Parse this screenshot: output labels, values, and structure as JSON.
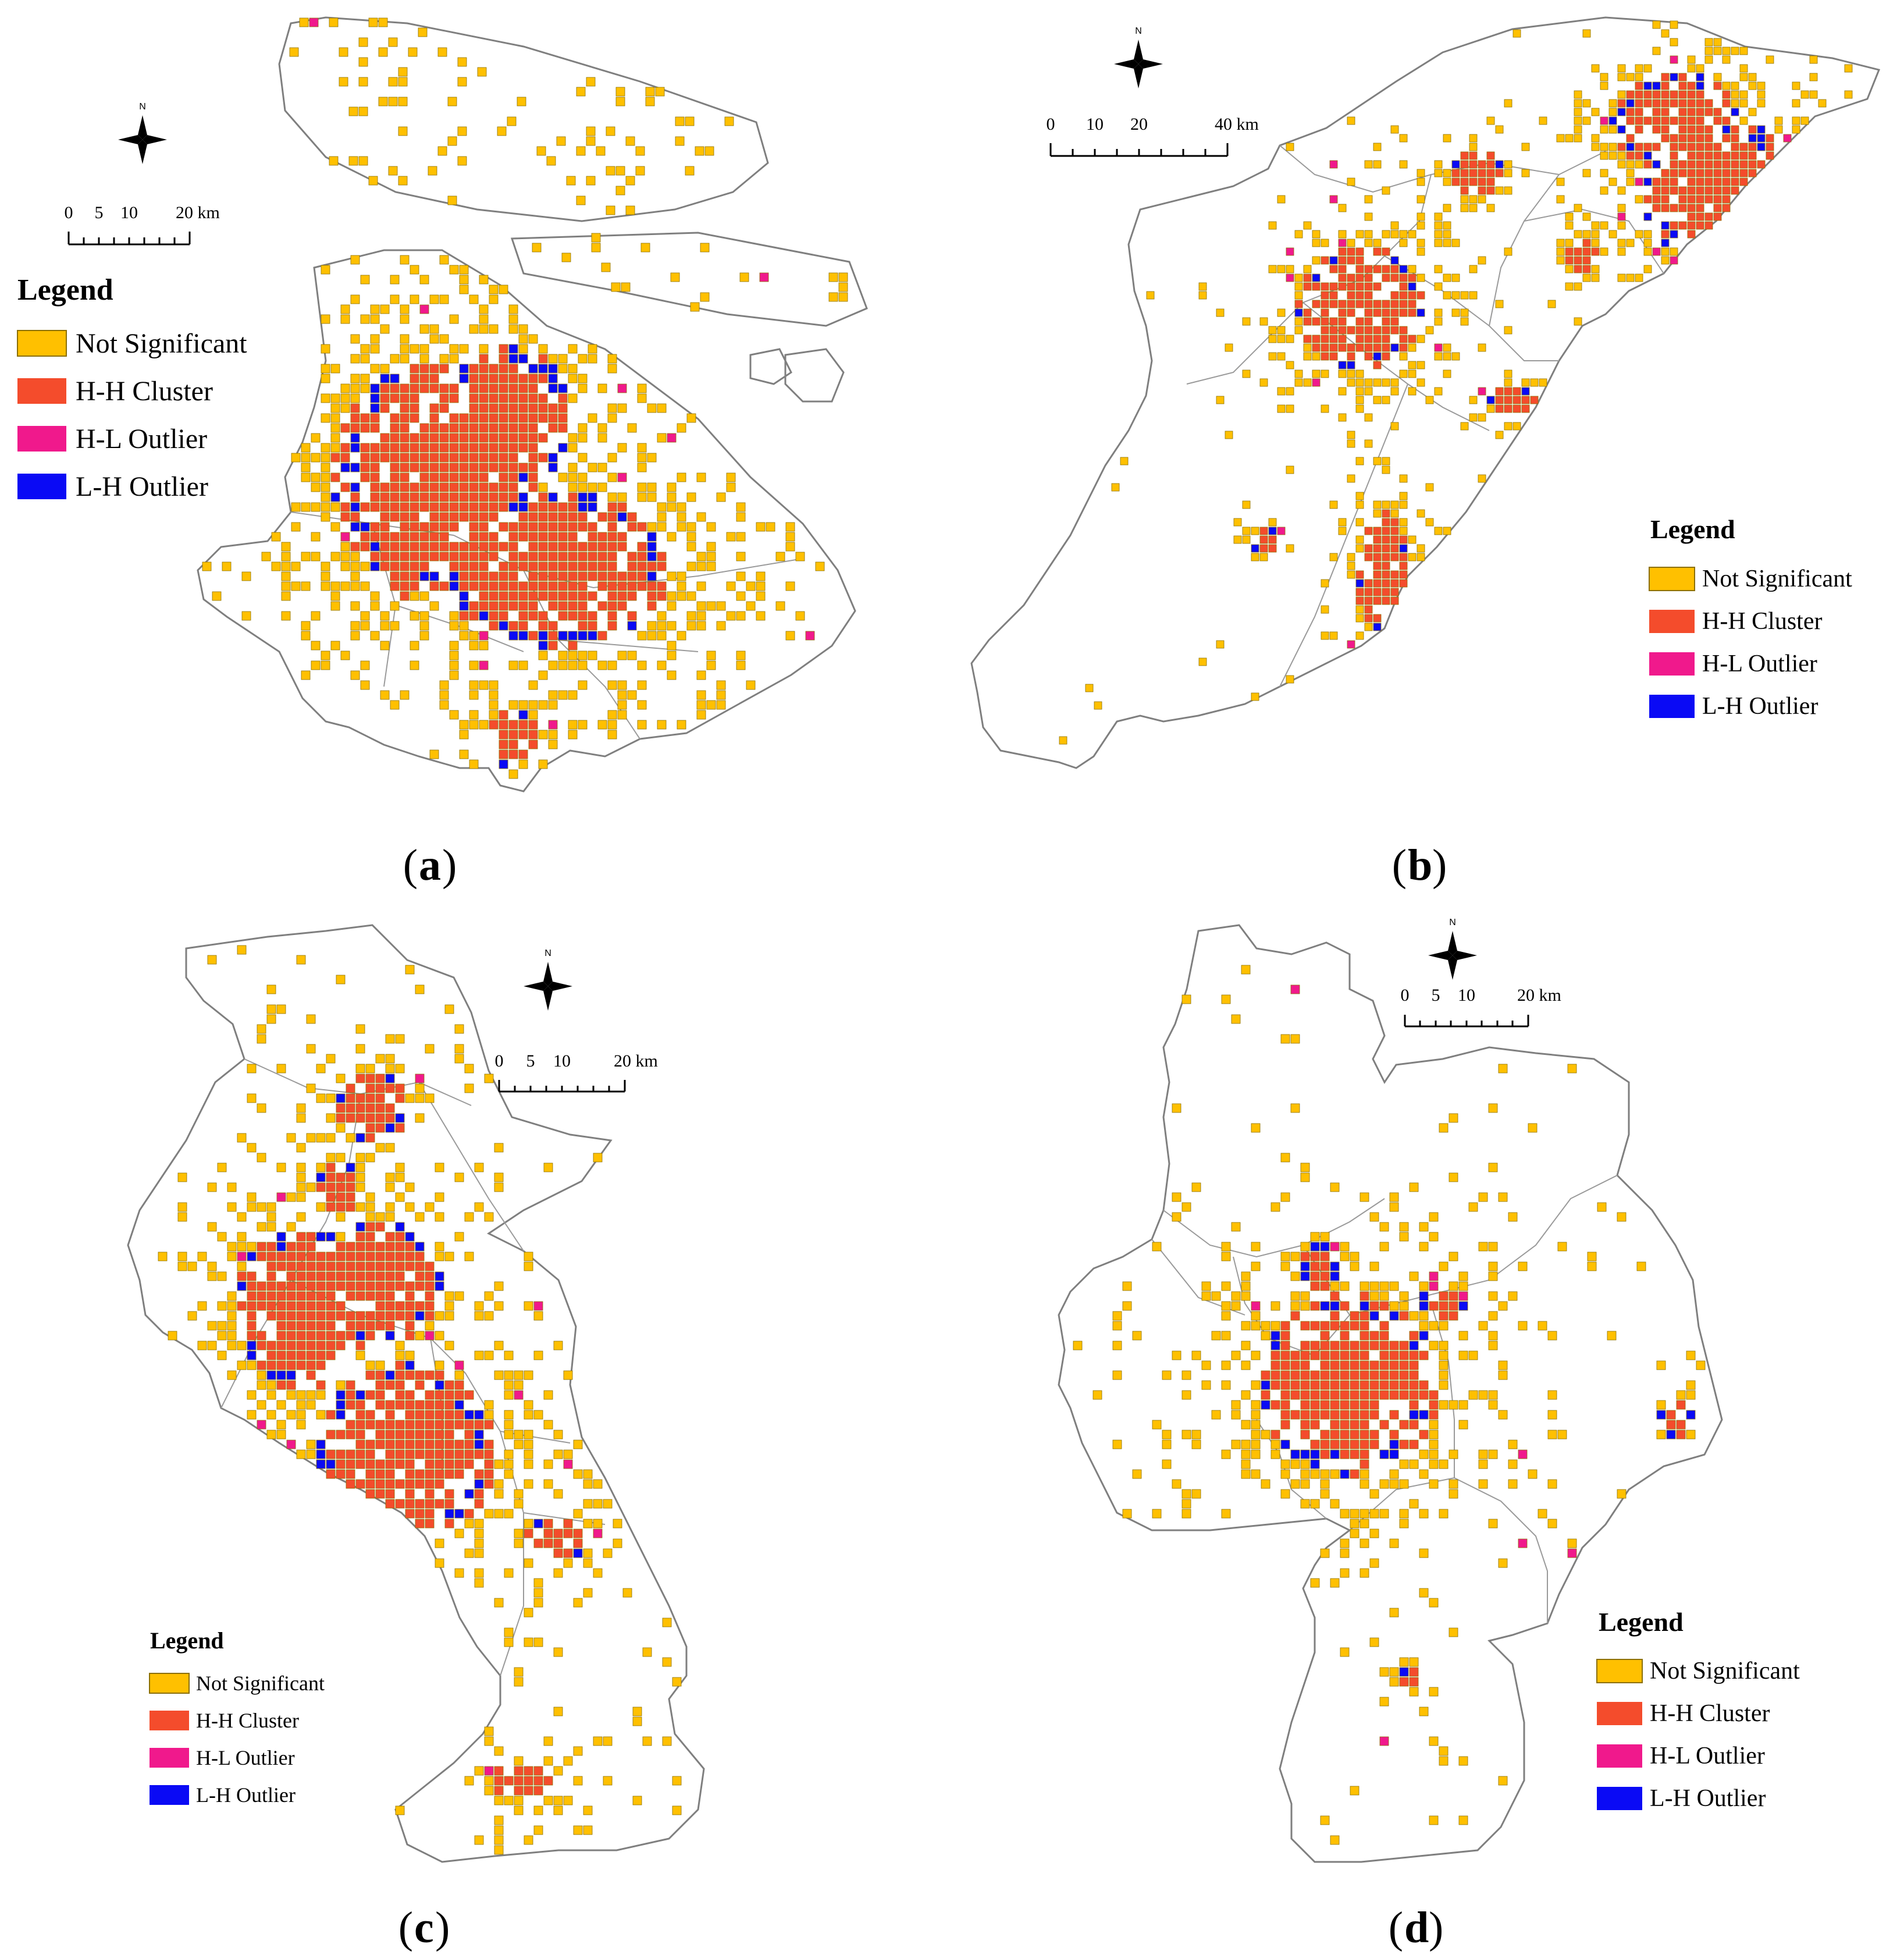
{
  "colors": {
    "not_significant": "#FFC000",
    "hh_cluster": "#F44C2C",
    "hl_outlier": "#F0198C",
    "lh_outlier": "#0A0AF5",
    "cell_border": "#8B6F00",
    "boundary": "#7F7F7F"
  },
  "legend_categories": [
    "Not Significant",
    "H-H Cluster",
    "H-L Outlier",
    "L-H Outlier"
  ],
  "panels": [
    {
      "id": "a",
      "caption_letter": "a",
      "legend_title": "Legend",
      "north_label": "N",
      "scale": {
        "ticks": [
          "0",
          "5",
          "10"
        ],
        "end_label": "20 km"
      }
    },
    {
      "id": "b",
      "caption_letter": "b",
      "legend_title": "Legend",
      "north_label": "N",
      "scale": {
        "ticks": [
          "0",
          "10",
          "20"
        ],
        "end_label": "40 km"
      }
    },
    {
      "id": "c",
      "caption_letter": "c",
      "legend_title": "Legend",
      "north_label": "N",
      "scale": {
        "ticks": [
          "0",
          "5",
          "10"
        ],
        "end_label": "20 km"
      }
    },
    {
      "id": "d",
      "caption_letter": "d",
      "legend_title": "Legend",
      "north_label": "N",
      "scale": {
        "ticks": [
          "0",
          "5",
          "10"
        ],
        "end_label": "20 km"
      }
    }
  ]
}
